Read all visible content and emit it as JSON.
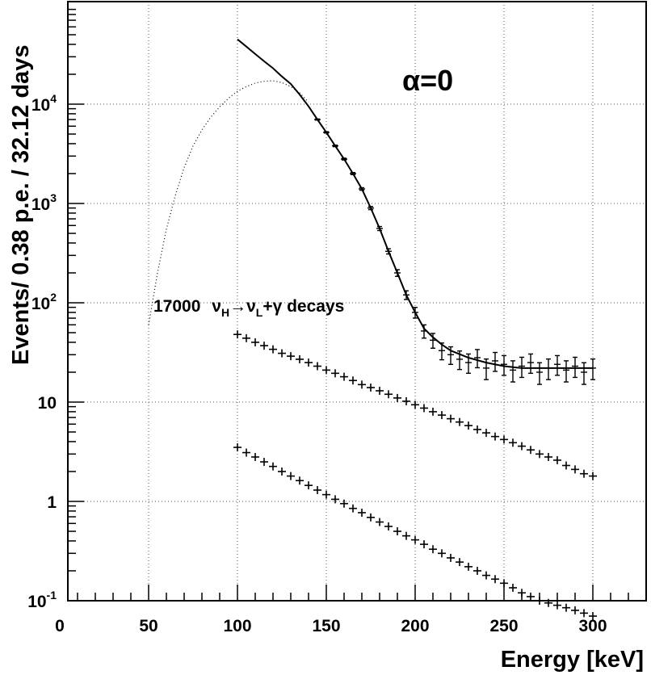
{
  "chart_data": {
    "type": "scatter",
    "title": "",
    "xlabel": "Energy [keV]",
    "ylabel": "Events/ 0.38 p.e. /   32.12 days",
    "xlim": [
      0,
      330
    ],
    "ylim": [
      0.1,
      100000
    ],
    "yscale": "log",
    "grid": true,
    "legend": "none",
    "x_ticks": [
      {
        "value": 0,
        "label": "0"
      },
      {
        "value": 50,
        "label": "50"
      },
      {
        "value": 100,
        "label": "100"
      },
      {
        "value": 150,
        "label": "150"
      },
      {
        "value": 200,
        "label": "200"
      },
      {
        "value": 250,
        "label": "250"
      },
      {
        "value": 300,
        "label": "300"
      }
    ],
    "y_ticks": [
      {
        "value": 0.1,
        "base": "10",
        "exp": "-1"
      },
      {
        "value": 1,
        "base": "1",
        "exp": ""
      },
      {
        "value": 10,
        "base": "10",
        "exp": ""
      },
      {
        "value": 100,
        "base": "10",
        "exp": "2"
      },
      {
        "value": 1000,
        "base": "10",
        "exp": "3"
      },
      {
        "value": 10000,
        "base": "10",
        "exp": "4"
      }
    ],
    "annotations": {
      "alpha": "α=0",
      "decay": {
        "count": "17000",
        "nu": "ν",
        "h": "H",
        "arrow": "→",
        "l": "L",
        "rest": "+γ decays"
      }
    },
    "series": [
      {
        "style": "curve",
        "x": [
          100,
          105,
          110,
          115,
          120,
          125,
          130,
          135,
          140,
          145,
          150,
          155,
          160,
          165,
          170,
          175,
          180,
          185,
          190,
          195,
          200,
          205,
          210,
          215,
          220,
          230,
          240,
          250,
          260,
          270,
          280,
          290,
          300
        ],
        "y": [
          45000,
          38000,
          32000,
          27000,
          23000,
          19000,
          16000,
          12500,
          9500,
          7000,
          5200,
          3800,
          2800,
          2000,
          1400,
          900,
          560,
          330,
          200,
          120,
          80,
          55,
          45,
          38,
          33,
          28,
          25,
          23,
          22,
          22,
          22,
          22,
          22
        ]
      },
      {
        "style": "dotted",
        "x": [
          50,
          55,
          60,
          65,
          70,
          75,
          80,
          85,
          90,
          95,
          100,
          105,
          110,
          115,
          120,
          125,
          130,
          135,
          140
        ],
        "y": [
          60,
          200,
          550,
          1200,
          2300,
          3800,
          5500,
          7400,
          9400,
          11500,
          13500,
          15000,
          16300,
          17000,
          17200,
          16500,
          15000,
          13000,
          10500
        ]
      },
      {
        "style": "errorbars",
        "x": [
          145,
          150,
          155,
          160,
          165,
          170,
          175,
          180,
          185,
          190,
          195,
          200,
          205,
          210,
          215,
          220,
          225,
          230,
          235,
          240,
          245,
          250,
          255,
          260,
          265,
          270,
          275,
          280,
          285,
          290,
          295,
          300
        ],
        "y": [
          7000,
          5200,
          3800,
          2800,
          2000,
          1400,
          900,
          560,
          330,
          200,
          120,
          80,
          52,
          42,
          33,
          30,
          27,
          25,
          28,
          22,
          26,
          24,
          21,
          23,
          25,
          20,
          22,
          24,
          21,
          23,
          20,
          22
        ]
      },
      {
        "style": "crosses",
        "x": [
          100,
          105,
          110,
          115,
          120,
          125,
          130,
          135,
          140,
          145,
          150,
          155,
          160,
          165,
          170,
          175,
          180,
          185,
          190,
          195,
          200,
          205,
          210,
          215,
          220,
          225,
          230,
          235,
          240,
          245,
          250,
          255,
          260,
          265,
          270,
          275,
          280,
          285,
          290,
          295,
          300
        ],
        "y": [
          48,
          44,
          40,
          37,
          34,
          31,
          29,
          27,
          25,
          23,
          21,
          19.5,
          18,
          16.5,
          15,
          14,
          13,
          12,
          11,
          10.2,
          9.4,
          8.7,
          8,
          7.4,
          6.8,
          6.3,
          5.8,
          5.3,
          4.9,
          4.5,
          4.2,
          3.9,
          3.6,
          3.3,
          3.0,
          2.8,
          2.6,
          2.3,
          2.1,
          1.9,
          1.8
        ]
      },
      {
        "style": "crosses",
        "x": [
          100,
          105,
          110,
          115,
          120,
          125,
          130,
          135,
          140,
          145,
          150,
          155,
          160,
          165,
          170,
          175,
          180,
          185,
          190,
          195,
          200,
          205,
          210,
          215,
          220,
          225,
          230,
          235,
          240,
          245,
          250,
          255,
          260,
          265,
          270,
          275,
          280,
          285,
          290,
          295,
          300
        ],
        "y": [
          3.5,
          3.1,
          2.8,
          2.5,
          2.25,
          2.0,
          1.8,
          1.62,
          1.45,
          1.3,
          1.17,
          1.05,
          0.95,
          0.85,
          0.77,
          0.69,
          0.62,
          0.56,
          0.5,
          0.45,
          0.41,
          0.37,
          0.33,
          0.3,
          0.27,
          0.245,
          0.22,
          0.2,
          0.18,
          0.165,
          0.15,
          0.135,
          0.12,
          0.11,
          0.1,
          0.095,
          0.09,
          0.085,
          0.08,
          0.075,
          0.07
        ]
      }
    ]
  }
}
